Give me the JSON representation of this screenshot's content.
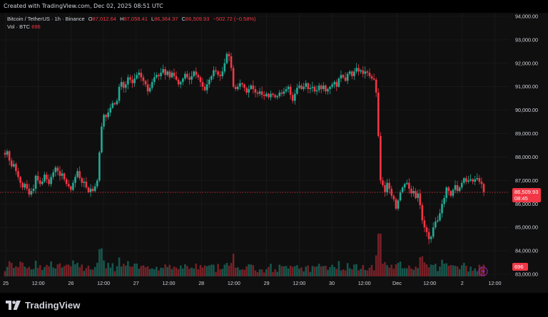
{
  "header": {
    "created_text": "Created with TradingView.com, Dec 02, 2025 08:51 UTC"
  },
  "legend": {
    "symbol": "Bitcoin / TetherUS · 1h · Binance",
    "open_label": "O",
    "open": "87,012.64",
    "high_label": "H",
    "high": "87,058.41",
    "low_label": "L",
    "low": "86,364.37",
    "close_label": "C",
    "close": "86,509.93",
    "change": "−502.72 (−0.58%)"
  },
  "volume_legend": {
    "label": "Vol · BTC",
    "value": "696"
  },
  "price_badge": {
    "price": "86,509.93",
    "countdown": "08:45"
  },
  "volume_badge": {
    "value": "696"
  },
  "footer": {
    "brand": "TradingView"
  },
  "colors": {
    "up": "#22ab94",
    "down": "#f23645",
    "background": "#0f0f0f",
    "grid": "#1e1e1e"
  },
  "chart_data": {
    "type": "candlestick",
    "yticks": [
      "94,000.00",
      "93,000.00",
      "92,000.00",
      "91,000.00",
      "90,000.00",
      "89,000.00",
      "88,000.00",
      "87,000.00",
      "86,000.00",
      "85,000.00",
      "84,000.00",
      "83,000.00"
    ],
    "ylim": [
      83000,
      94000
    ],
    "xticks": [
      "25",
      "12:00",
      "26",
      "12:00",
      "27",
      "12:00",
      "28",
      "12:00",
      "29",
      "12:00",
      "30",
      "12:00",
      "Dec",
      "12:00",
      "2",
      "12:00"
    ],
    "current_price": 86509.93,
    "closes": [
      88100,
      88250,
      87850,
      87600,
      87700,
      87400,
      87150,
      86900,
      86700,
      86850,
      86650,
      86400,
      86550,
      86650,
      87200,
      87000,
      86850,
      86950,
      87250,
      87050,
      86850,
      87150,
      87350,
      87550,
      87400,
      87200,
      87300,
      87050,
      86850,
      86750,
      86600,
      86900,
      87150,
      87400,
      87100,
      86900,
      86950,
      86700,
      86500,
      86650,
      86550,
      86750,
      87000,
      88200,
      89300,
      89800,
      89700,
      89900,
      90100,
      90300,
      90250,
      90400,
      91000,
      91200,
      90950,
      91100,
      91400,
      91300,
      91150,
      91350,
      91500,
      91600,
      91400,
      91250,
      91100,
      90800,
      90950,
      91200,
      91400,
      91500,
      91450,
      91600,
      91750,
      91500,
      91650,
      91400,
      91600,
      91450,
      91300,
      91100,
      91200,
      91350,
      91550,
      91400,
      91300,
      91450,
      91650,
      91500,
      91400,
      91200,
      91000,
      90850,
      91100,
      91300,
      91450,
      91700,
      91650,
      91500,
      91450,
      91650,
      92000,
      92400,
      92300,
      91800,
      91000,
      90900,
      91000,
      91150,
      91100,
      90950,
      90750,
      90900,
      91050,
      90900,
      90750,
      90700,
      90800,
      90650,
      90600,
      90700,
      90550,
      90700,
      90650,
      90550,
      90600,
      90750,
      90700,
      90800,
      90900,
      91000,
      90650,
      90400,
      90700,
      90950,
      91050,
      90900,
      91000,
      91150,
      90900,
      90950,
      91000,
      90800,
      90850,
      91050,
      90900,
      91050,
      90800,
      90900,
      91000,
      91100,
      91200,
      91000,
      91350,
      91500,
      91400,
      91250,
      91550,
      91650,
      91450,
      91650,
      91800,
      91650,
      91700,
      91550,
      91650,
      91600,
      91450,
      91350,
      91300,
      90750,
      88900,
      87000,
      86800,
      86500,
      86900,
      86650,
      86350,
      86200,
      85800,
      86150,
      86500,
      86700,
      86850,
      86900,
      86650,
      86450,
      86550,
      86250,
      86450,
      85950,
      85300,
      85000,
      84800,
      84500,
      84600,
      85000,
      85250,
      85300,
      85600,
      86000,
      86250,
      86700,
      86550,
      86350,
      86600,
      86800,
      86550,
      86700,
      86900,
      87100,
      86950,
      87000,
      87050,
      86950,
      87050,
      87100,
      86950,
      86850,
      86509.93
    ],
    "volume": {
      "label": "Vol · BTC",
      "last": 696
    }
  }
}
